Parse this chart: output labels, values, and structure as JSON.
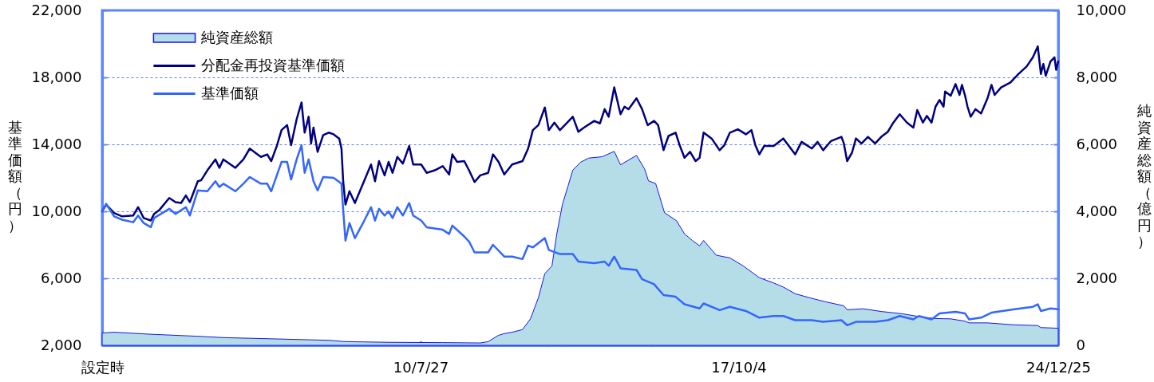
{
  "chart_data": {
    "type": "line",
    "ylabel": "基準価額（円）",
    "y2label": "純資産総額（億円）",
    "xlim": [
      "2003-05-16",
      "2024-12-25"
    ],
    "xticks": [
      {
        "value": "2003-05-16",
        "label": "設定時"
      },
      {
        "value": "2010-07-27",
        "label": "10/7/27"
      },
      {
        "value": "2017-10-04",
        "label": "17/10/4"
      },
      {
        "value": "2024-12-25",
        "label": "24/12/25"
      }
    ],
    "ylim": [
      2000,
      22000
    ],
    "yticks": [
      {
        "value": 2000,
        "label": "2,000"
      },
      {
        "value": 6000,
        "label": "6,000"
      },
      {
        "value": 10000,
        "label": "10,000"
      },
      {
        "value": 14000,
        "label": "14,000"
      },
      {
        "value": 18000,
        "label": "18,000"
      },
      {
        "value": 22000,
        "label": "22,000"
      }
    ],
    "y2lim": [
      0,
      10000
    ],
    "y2ticks": [
      0,
      {
        "value": 2000,
        "label": "2,000"
      },
      {
        "value": 4000,
        "label": "4,000"
      },
      {
        "value": 6000,
        "label": "6,000"
      },
      {
        "value": 8000,
        "label": "8,000"
      },
      {
        "value": 10000,
        "label": "10,000"
      }
    ],
    "grid": "y",
    "legend": "top left",
    "series": [
      {
        "name": "純資産総額",
        "type": "area",
        "axis": "y2",
        "color": "#b5dde8",
        "x": [
          "2003-05-16",
          "2003-08-23",
          "2004-06-21",
          "2005-07-14",
          "2006-02-10",
          "2007-04-27",
          "2008-06-29",
          "2008-11-14",
          "2009-11-05",
          "2011-01-26",
          "2011-12-02",
          "2012-02-05",
          "2012-03-16",
          "2012-05-01",
          "2012-06-17",
          "2012-08-21",
          "2012-11-15",
          "2013-01-19",
          "2013-03-26",
          "2013-05-18",
          "2013-07-16",
          "2013-08-25",
          "2013-10-10",
          "2013-11-25",
          "2014-01-04",
          "2014-03-11",
          "2014-05-15",
          "2014-09-04",
          "2014-12-12",
          "2015-02-02",
          "2015-06-14",
          "2015-08-19",
          "2015-09-21",
          "2015-11-19",
          "2015-12-22",
          "2016-01-31",
          "2016-05-09",
          "2016-07-14",
          "2016-09-17",
          "2016-11-16",
          "2016-12-19",
          "2017-04-03",
          "2017-07-24",
          "2017-11-11",
          "2018-03-24",
          "2018-07-21",
          "2018-10-08",
          "2019-01-14",
          "2019-05-13",
          "2019-09-21",
          "2020-02-20",
          "2020-03-18",
          "2020-07-28",
          "2020-12-25",
          "2021-06-20",
          "2021-10-30",
          "2022-03-10",
          "2022-07-21",
          "2022-11-17",
          "2022-12-20",
          "2023-05-21",
          "2023-12-30",
          "2024-07-09",
          "2024-08-04",
          "2024-12-25"
        ],
        "values": [
          370,
          390,
          330,
          270,
          230,
          190,
          150,
          110,
          90,
          80,
          70,
          110,
          200,
          300,
          350,
          390,
          470,
          790,
          1420,
          2140,
          2370,
          3330,
          4200,
          4750,
          5230,
          5470,
          5590,
          5630,
          5790,
          5390,
          5670,
          5270,
          4910,
          4830,
          4440,
          3960,
          3720,
          3330,
          3130,
          2970,
          3130,
          2690,
          2610,
          2370,
          2020,
          1860,
          1740,
          1540,
          1420,
          1300,
          1180,
          1060,
          1090,
          1010,
          940,
          860,
          800,
          790,
          720,
          670,
          670,
          610,
          590,
          530,
          510
        ]
      },
      {
        "name": "分配金再投資基準価額",
        "color": "#000080",
        "x": [
          "2003-05-16",
          "2003-06-18",
          "2003-08-23",
          "2003-10-28",
          "2004-01-27",
          "2004-03-08",
          "2004-04-23",
          "2004-06-21",
          "2004-07-18",
          "2004-09-02",
          "2004-11-20",
          "2005-01-11",
          "2005-02-26",
          "2005-04-06",
          "2005-05-09",
          "2005-07-14",
          "2005-08-10",
          "2005-10-01",
          "2005-12-06",
          "2006-01-08",
          "2006-02-10",
          "2006-05-20",
          "2006-07-25",
          "2006-09-16",
          "2006-10-31",
          "2006-12-17",
          "2007-02-07",
          "2007-03-12",
          "2007-04-27",
          "2007-06-05",
          "2007-07-21",
          "2007-08-23",
          "2007-10-08",
          "2007-11-17",
          "2007-12-13",
          "2008-01-15",
          "2008-02-04",
          "2008-02-24",
          "2008-03-29",
          "2008-05-14",
          "2008-06-29",
          "2008-08-08",
          "2008-09-23",
          "2008-10-12",
          "2008-10-26",
          "2008-11-14",
          "2008-12-17",
          "2009-01-31",
          "2009-04-08",
          "2009-06-13",
          "2009-07-16",
          "2009-08-18",
          "2009-10-03",
          "2009-11-05",
          "2009-12-08",
          "2010-01-16",
          "2010-03-03",
          "2010-04-24",
          "2010-05-27",
          "2010-08-01",
          "2010-09-16",
          "2010-11-21",
          "2011-01-26",
          "2011-03-20",
          "2011-04-15",
          "2011-05-25",
          "2011-07-23",
          "2011-08-31",
          "2011-10-16",
          "2011-12-02",
          "2012-02-05",
          "2012-03-16",
          "2012-05-01",
          "2012-06-17",
          "2012-08-21",
          "2012-11-15",
          "2012-12-31",
          "2013-02-08",
          "2013-03-26",
          "2013-05-18",
          "2013-06-20",
          "2013-08-05",
          "2013-09-20",
          "2013-10-30",
          "2014-01-04",
          "2014-02-19",
          "2014-04-06",
          "2014-06-30",
          "2014-08-16",
          "2014-09-24",
          "2014-10-27",
          "2014-12-12",
          "2015-02-02",
          "2015-03-07",
          "2015-04-09",
          "2015-06-14",
          "2015-07-30",
          "2015-09-14",
          "2015-11-06",
          "2015-12-09",
          "2016-01-23",
          "2016-03-04",
          "2016-05-02",
          "2016-06-04",
          "2016-07-14",
          "2016-08-29",
          "2016-10-14",
          "2016-11-16",
          "2016-12-19",
          "2017-02-23",
          "2017-04-30",
          "2017-06-08",
          "2017-07-24",
          "2017-09-28",
          "2017-12-03",
          "2018-01-18",
          "2018-02-19",
          "2018-03-24",
          "2018-05-03",
          "2018-07-21",
          "2018-10-08",
          "2019-01-14",
          "2019-03-08",
          "2019-06-01",
          "2019-07-18",
          "2019-09-02",
          "2019-11-06",
          "2020-01-31",
          "2020-02-20",
          "2020-03-18",
          "2020-04-27",
          "2020-05-30",
          "2020-07-15",
          "2020-09-06",
          "2020-11-04",
          "2020-12-25",
          "2021-02-17",
          "2021-04-04",
          "2021-05-26",
          "2021-07-25",
          "2021-09-16",
          "2021-10-18",
          "2021-12-04",
          "2022-01-05",
          "2022-02-13",
          "2022-03-18",
          "2022-04-20",
          "2022-05-23",
          "2022-06-05",
          "2022-07-21",
          "2022-08-30",
          "2022-10-02",
          "2022-10-22",
          "2022-11-17",
          "2022-12-07",
          "2023-01-02",
          "2023-02-11",
          "2023-03-29",
          "2023-05-21",
          "2023-06-23",
          "2023-07-19",
          "2023-09-10",
          "2023-11-27",
          "2024-01-31",
          "2024-04-08",
          "2024-05-30",
          "2024-07-09",
          "2024-08-04",
          "2024-08-24",
          "2024-09-13",
          "2024-10-22",
          "2024-11-24",
          "2024-12-08",
          "2024-12-25"
        ],
        "values": [
          10000,
          10400,
          9900,
          9700,
          9750,
          10250,
          9600,
          9450,
          9850,
          10100,
          10800,
          10550,
          10500,
          10950,
          10550,
          11800,
          11850,
          12450,
          13100,
          12600,
          13100,
          12600,
          13100,
          13750,
          13500,
          13250,
          13400,
          13000,
          13900,
          14850,
          15150,
          13950,
          15500,
          16500,
          14700,
          15650,
          14050,
          15000,
          13550,
          14550,
          14700,
          14600,
          14350,
          13750,
          11800,
          10400,
          11200,
          10500,
          11650,
          12800,
          11800,
          13000,
          12150,
          12950,
          12300,
          13250,
          12850,
          13900,
          12800,
          12800,
          12300,
          12450,
          12700,
          12200,
          13400,
          12950,
          13000,
          12450,
          11750,
          12150,
          12300,
          13400,
          12950,
          12200,
          12800,
          13000,
          13750,
          14850,
          15150,
          16200,
          14850,
          15300,
          14850,
          15150,
          15650,
          14750,
          15000,
          15400,
          15250,
          16100,
          15650,
          17400,
          15800,
          16250,
          16100,
          16750,
          16100,
          15150,
          15400,
          15150,
          13650,
          14500,
          14700,
          13950,
          13200,
          13550,
          13000,
          13200,
          14700,
          14350,
          13650,
          13950,
          14700,
          14900,
          14600,
          14850,
          13950,
          13400,
          13900,
          13900,
          14350,
          13400,
          14150,
          13750,
          14150,
          13650,
          14200,
          14450,
          14050,
          13000,
          13500,
          14350,
          14050,
          14450,
          14050,
          14450,
          14750,
          15300,
          15800,
          15300,
          15000,
          16050,
          15300,
          15700,
          15300,
          16250,
          16650,
          16250,
          17150,
          16900,
          17600,
          16950,
          17550,
          16900,
          16250,
          15650,
          16100,
          15850,
          16750,
          17550,
          16950,
          17400,
          17700,
          18200,
          18650,
          19200,
          19850,
          18200,
          18800,
          18100,
          18950,
          19200,
          18450,
          18950
        ]
      },
      {
        "name": "基準価額",
        "color": "#3366ff",
        "x": [
          "2003-05-16",
          "2003-06-18",
          "2003-08-23",
          "2003-10-28",
          "2004-01-27",
          "2004-03-08",
          "2004-04-23",
          "2004-06-21",
          "2004-07-18",
          "2004-11-20",
          "2005-01-11",
          "2005-04-06",
          "2005-05-09",
          "2005-07-14",
          "2005-10-01",
          "2005-12-06",
          "2006-01-08",
          "2006-02-10",
          "2006-05-20",
          "2006-07-25",
          "2006-09-16",
          "2006-12-17",
          "2007-02-07",
          "2007-03-12",
          "2007-06-05",
          "2007-07-21",
          "2007-08-23",
          "2007-10-08",
          "2007-11-17",
          "2007-12-13",
          "2008-01-15",
          "2008-02-24",
          "2008-03-29",
          "2008-05-14",
          "2008-08-08",
          "2008-10-12",
          "2008-10-26",
          "2008-11-14",
          "2008-12-17",
          "2009-01-31",
          "2009-04-08",
          "2009-06-13",
          "2009-07-16",
          "2009-08-18",
          "2009-10-03",
          "2009-11-05",
          "2009-12-08",
          "2010-01-16",
          "2010-03-03",
          "2010-04-24",
          "2010-05-27",
          "2010-08-01",
          "2010-09-16",
          "2011-01-26",
          "2011-03-20",
          "2011-04-15",
          "2011-07-23",
          "2011-08-31",
          "2011-10-16",
          "2012-02-05",
          "2012-03-16",
          "2012-06-17",
          "2012-08-21",
          "2012-11-15",
          "2012-12-31",
          "2013-02-08",
          "2013-05-18",
          "2013-06-20",
          "2013-09-20",
          "2014-01-04",
          "2014-02-19",
          "2014-06-30",
          "2014-09-24",
          "2014-10-27",
          "2014-12-12",
          "2015-02-02",
          "2015-06-14",
          "2015-07-30",
          "2015-11-06",
          "2016-01-23",
          "2016-05-02",
          "2016-07-14",
          "2016-11-16",
          "2016-12-19",
          "2017-04-30",
          "2017-07-24",
          "2017-12-03",
          "2018-03-24",
          "2018-07-21",
          "2018-10-08",
          "2019-01-14",
          "2019-06-01",
          "2019-09-02",
          "2020-01-31",
          "2020-03-18",
          "2020-05-30",
          "2020-11-04",
          "2021-02-17",
          "2021-05-26",
          "2021-09-16",
          "2021-10-30",
          "2022-02-13",
          "2022-04-20",
          "2022-08-30",
          "2022-11-17",
          "2022-12-20",
          "2023-03-29",
          "2023-06-23",
          "2023-12-30",
          "2024-05-30",
          "2024-07-09",
          "2024-08-04",
          "2024-10-22",
          "2024-12-25"
        ],
        "values": [
          10000,
          10450,
          9700,
          9500,
          9350,
          9750,
          9300,
          9050,
          9600,
          10150,
          9850,
          10250,
          9750,
          11250,
          11200,
          11800,
          11450,
          11650,
          11200,
          11650,
          12050,
          11650,
          11650,
          11200,
          12950,
          12950,
          11900,
          13100,
          13950,
          12300,
          13100,
          11800,
          11250,
          12050,
          12000,
          11650,
          10100,
          8250,
          9300,
          8400,
          9300,
          10250,
          9450,
          10150,
          9750,
          10000,
          9600,
          10250,
          9750,
          10500,
          9750,
          9450,
          9050,
          8900,
          8650,
          9150,
          8500,
          8200,
          7550,
          7550,
          8000,
          7300,
          7300,
          7150,
          7950,
          7850,
          8400,
          7700,
          7450,
          7450,
          7000,
          6900,
          7000,
          6750,
          7300,
          6600,
          6500,
          5950,
          5650,
          5000,
          4900,
          4450,
          4200,
          4500,
          4100,
          4300,
          4050,
          3650,
          3750,
          3750,
          3500,
          3500,
          3400,
          3500,
          3200,
          3400,
          3400,
          3500,
          3750,
          3550,
          3750,
          3550,
          3900,
          4000,
          3900,
          3550,
          3650,
          3950,
          4150,
          4300,
          4450,
          4050,
          4200,
          4150
        ]
      }
    ]
  }
}
